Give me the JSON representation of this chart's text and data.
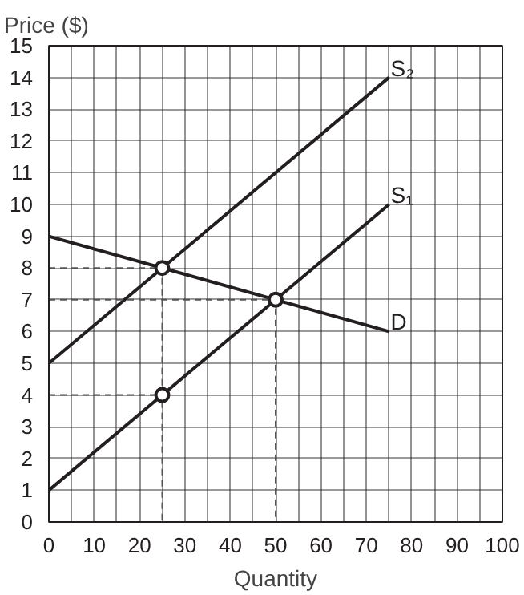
{
  "chart_data": {
    "type": "line",
    "xlabel": "Quantity",
    "ylabel": "Price ($)",
    "xlim": [
      0,
      100
    ],
    "ylim": [
      0,
      15
    ],
    "xticks": [
      0,
      {
        "value": 5,
        "label": null
      },
      10,
      {
        "value": 15,
        "label": null
      },
      20,
      {
        "value": 25,
        "label": null
      },
      30,
      {
        "value": 35,
        "label": null
      },
      40,
      {
        "value": 45,
        "label": null
      },
      50,
      {
        "value": 55,
        "label": null
      },
      60,
      {
        "value": 65,
        "label": null
      },
      70,
      {
        "value": 75,
        "label": null
      },
      80,
      {
        "value": 85,
        "label": null
      },
      90,
      {
        "value": 95,
        "label": null
      },
      100
    ],
    "yticks": [
      0,
      1,
      2,
      3,
      4,
      5,
      6,
      7,
      8,
      9,
      10,
      11,
      12,
      13,
      14,
      15
    ],
    "grid": true,
    "series": [
      {
        "name": "S₂",
        "color": "#231f20",
        "x": [
          0,
          75
        ],
        "values": [
          5,
          14
        ],
        "line_style": "solid"
      },
      {
        "name": "S₁",
        "color": "#231f20",
        "x": [
          0,
          75
        ],
        "values": [
          1,
          10
        ],
        "line_style": "solid"
      },
      {
        "name": "D",
        "color": "#231f20",
        "x": [
          0,
          75
        ],
        "values": [
          9,
          6
        ],
        "line_style": "solid"
      },
      {
        "color": "#555555",
        "x": [
          0,
          25,
          25
        ],
        "values": [
          8,
          8,
          0
        ],
        "line_style": "dashed"
      },
      {
        "color": "#555555",
        "x": [
          0,
          50,
          50
        ],
        "values": [
          7,
          7,
          0
        ],
        "line_style": "dashed"
      },
      {
        "color": "#555555",
        "x": [
          0,
          25
        ],
        "values": [
          4,
          4
        ],
        "line_style": "dashed"
      },
      {
        "type": "scatter",
        "color": "#231f20",
        "x": [
          25,
          25,
          50
        ],
        "values": [
          8,
          4,
          7
        ],
        "marker": "circle"
      }
    ]
  }
}
